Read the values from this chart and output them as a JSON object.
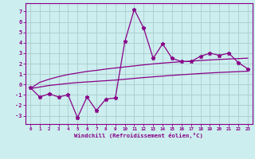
{
  "x": [
    0,
    1,
    2,
    3,
    4,
    5,
    6,
    7,
    8,
    9,
    10,
    11,
    12,
    13,
    14,
    15,
    16,
    17,
    18,
    19,
    20,
    21,
    22,
    23
  ],
  "y_main": [
    -0.3,
    -1.2,
    -0.9,
    -1.2,
    -1.0,
    -3.2,
    -1.2,
    -2.5,
    -1.4,
    -1.3,
    4.1,
    7.2,
    5.4,
    2.5,
    3.9,
    2.5,
    2.2,
    2.2,
    2.7,
    3.0,
    2.8,
    3.0,
    2.1,
    1.5
  ],
  "y_upper": [
    -0.4,
    0.2,
    0.5,
    0.75,
    0.95,
    1.1,
    1.25,
    1.35,
    1.48,
    1.58,
    1.68,
    1.78,
    1.88,
    1.97,
    2.05,
    2.12,
    2.18,
    2.24,
    2.3,
    2.35,
    2.4,
    2.44,
    2.48,
    2.52
  ],
  "y_lower": [
    -0.4,
    -0.25,
    -0.1,
    0.0,
    0.1,
    0.18,
    0.24,
    0.3,
    0.36,
    0.42,
    0.5,
    0.58,
    0.66,
    0.73,
    0.8,
    0.87,
    0.93,
    0.99,
    1.05,
    1.1,
    1.15,
    1.19,
    1.23,
    1.27
  ],
  "line_color": "#880088",
  "bg_color": "#cceeee",
  "grid_color": "#aacccc",
  "xlabel": "Windchill (Refroidissement éolien,°C)",
  "xlim": [
    -0.5,
    23.5
  ],
  "ylim": [
    -3.8,
    7.8
  ],
  "yticks": [
    -3,
    -2,
    -1,
    0,
    1,
    2,
    3,
    4,
    5,
    6,
    7
  ],
  "xticks": [
    0,
    1,
    2,
    3,
    4,
    5,
    6,
    7,
    8,
    9,
    10,
    11,
    12,
    13,
    14,
    15,
    16,
    17,
    18,
    19,
    20,
    21,
    22,
    23
  ]
}
